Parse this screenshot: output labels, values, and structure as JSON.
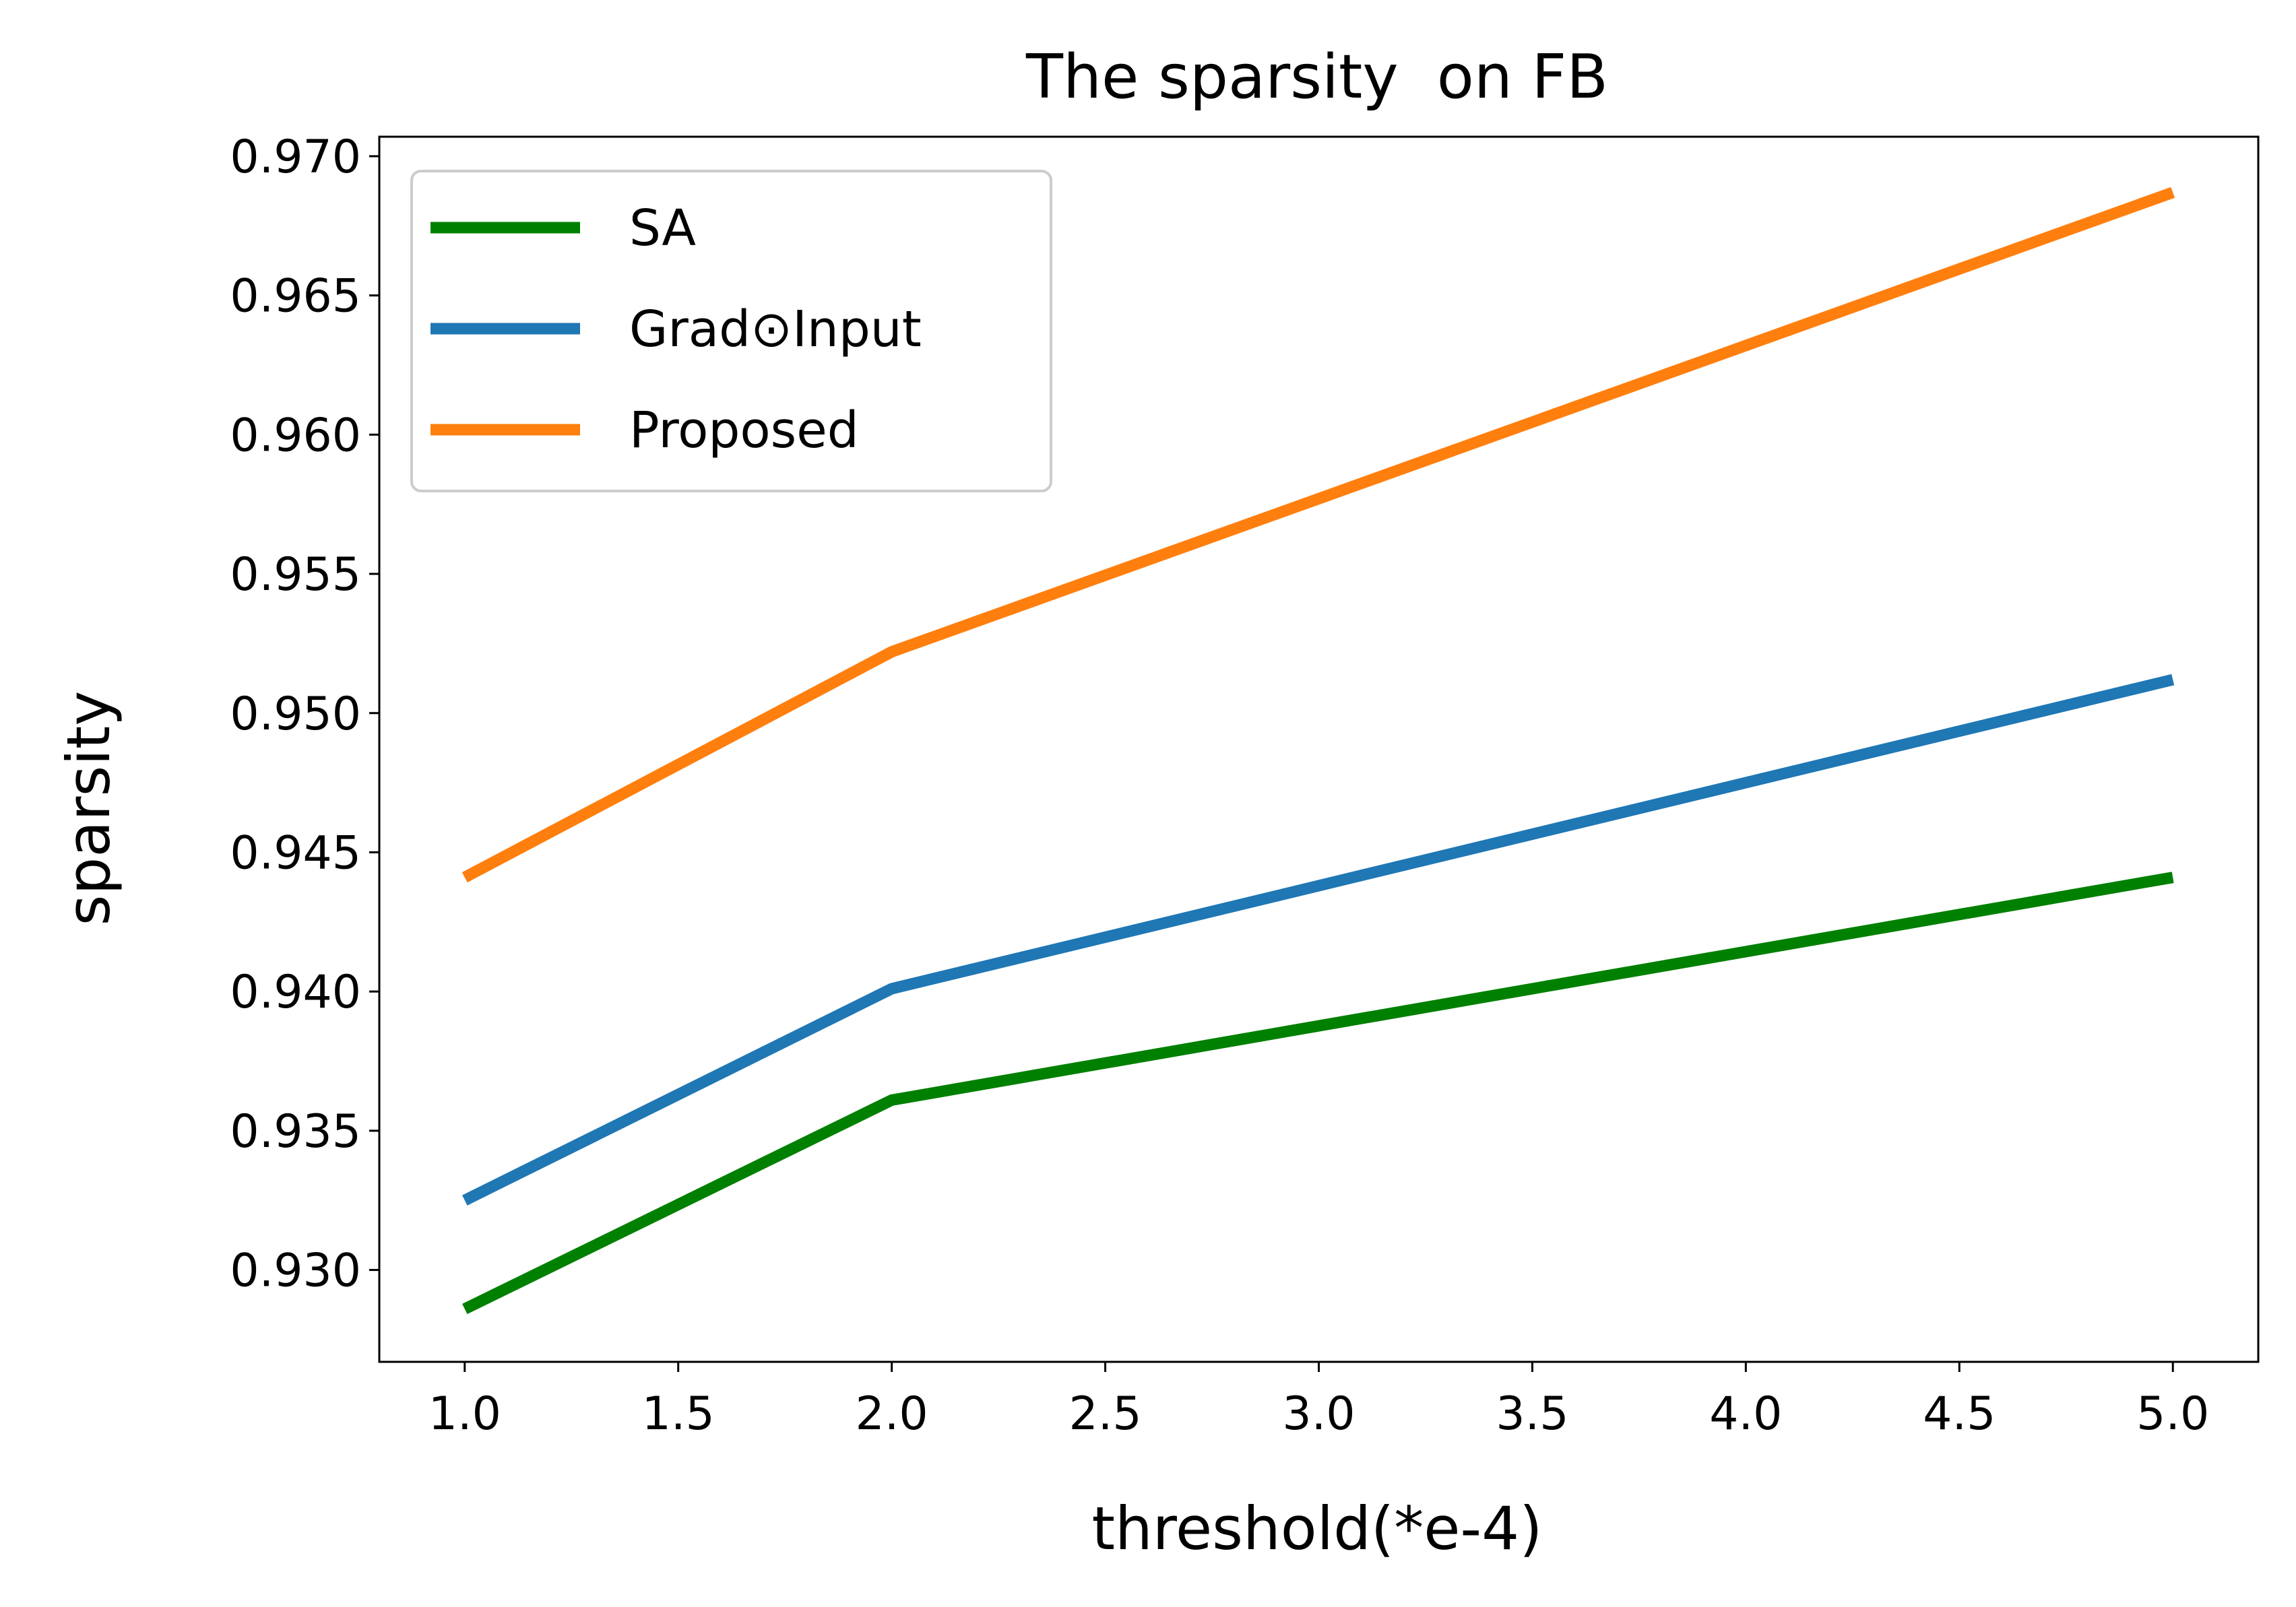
{
  "chart_data": {
    "type": "line",
    "title": "The sparsity  on FB",
    "xlabel": "threshold(*e-4)",
    "ylabel": "sparsity",
    "x": [
      1.0,
      2.0,
      5.0
    ],
    "series": [
      {
        "name": "SA",
        "color": "#008000",
        "values": [
          0.9286,
          0.9361,
          0.9441
        ]
      },
      {
        "name": "Grad⊙Input",
        "color": "#1f77b4",
        "values": [
          0.9325,
          0.9401,
          0.9512
        ]
      },
      {
        "name": "Proposed",
        "color": "#ff7f0e",
        "values": [
          0.9441,
          0.9522,
          0.9687
        ]
      }
    ],
    "xlim": [
      0.8,
      5.2
    ],
    "ylim": [
      0.9267,
      0.9707
    ],
    "xticks": [
      1.0,
      1.5,
      2.0,
      2.5,
      3.0,
      3.5,
      4.0,
      4.5,
      5.0
    ],
    "xtick_labels": [
      "1.0",
      "1.5",
      "2.0",
      "2.5",
      "3.0",
      "3.5",
      "4.0",
      "4.5",
      "5.0"
    ],
    "yticks": [
      0.93,
      0.935,
      0.94,
      0.945,
      0.95,
      0.955,
      0.96,
      0.965,
      0.97
    ],
    "ytick_labels": [
      "0.930",
      "0.935",
      "0.940",
      "0.945",
      "0.950",
      "0.955",
      "0.960",
      "0.965",
      "0.970"
    ],
    "grid": false,
    "legend_position": "upper-left"
  }
}
